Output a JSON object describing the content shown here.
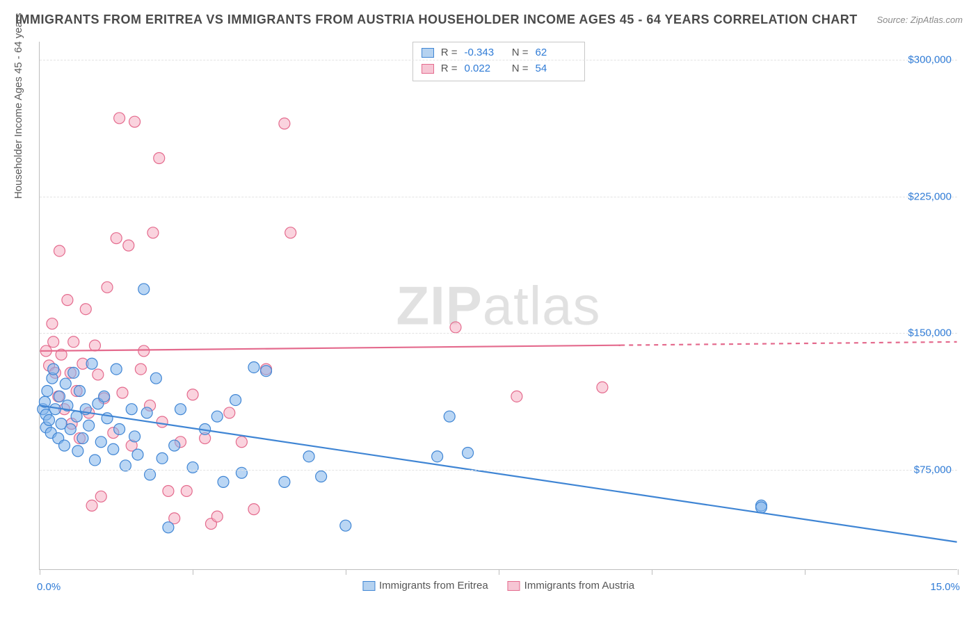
{
  "title": "IMMIGRANTS FROM ERITREA VS IMMIGRANTS FROM AUSTRIA HOUSEHOLDER INCOME AGES 45 - 64 YEARS CORRELATION CHART",
  "source": "Source: ZipAtlas.com",
  "yaxis_label": "Householder Income Ages 45 - 64 years",
  "watermark_1": "ZIP",
  "watermark_2": "atlas",
  "chart": {
    "type": "scatter",
    "background_color": "#ffffff",
    "grid_color": "#e3e3e3",
    "axis_color": "#bdbdbd",
    "tick_label_color": "#2f7bd6",
    "xlim": [
      0,
      15
    ],
    "ylim": [
      20000,
      310000
    ],
    "ytick_values": [
      75000,
      150000,
      225000,
      300000
    ],
    "ytick_labels": [
      "$75,000",
      "$150,000",
      "$225,000",
      "$300,000"
    ],
    "xtick_values": [
      0,
      2.5,
      5.0,
      7.5,
      10.0,
      12.5,
      15.0
    ],
    "xtick_left_label": "0.0%",
    "xtick_right_label": "15.0%",
    "marker_radius": 8,
    "marker_stroke_width": 1.2,
    "line_width": 2.2,
    "series": [
      {
        "name": "Immigrants from Eritrea",
        "fill": "rgba(130,180,235,0.55)",
        "stroke": "#3f85d4",
        "swatch_fill": "#b5d2f0",
        "swatch_border": "#3f85d4",
        "R": "-0.343",
        "N": "62",
        "regression": {
          "y_at_x0": 110000,
          "y_at_x15": 35000
        },
        "dash_start_x": 15,
        "points": [
          [
            0.05,
            108000
          ],
          [
            0.08,
            112000
          ],
          [
            0.1,
            98000
          ],
          [
            0.1,
            105000
          ],
          [
            0.12,
            118000
          ],
          [
            0.15,
            102000
          ],
          [
            0.18,
            95000
          ],
          [
            0.2,
            125000
          ],
          [
            0.22,
            130000
          ],
          [
            0.25,
            108000
          ],
          [
            0.3,
            92000
          ],
          [
            0.32,
            115000
          ],
          [
            0.35,
            100000
          ],
          [
            0.4,
            88000
          ],
          [
            0.42,
            122000
          ],
          [
            0.45,
            110000
          ],
          [
            0.5,
            97000
          ],
          [
            0.55,
            128000
          ],
          [
            0.6,
            104000
          ],
          [
            0.62,
            85000
          ],
          [
            0.65,
            118000
          ],
          [
            0.7,
            92000
          ],
          [
            0.75,
            108000
          ],
          [
            0.8,
            99000
          ],
          [
            0.85,
            133000
          ],
          [
            0.9,
            80000
          ],
          [
            0.95,
            111000
          ],
          [
            1.0,
            90000
          ],
          [
            1.05,
            115000
          ],
          [
            1.1,
            103000
          ],
          [
            1.2,
            86000
          ],
          [
            1.25,
            130000
          ],
          [
            1.3,
            97000
          ],
          [
            1.4,
            77000
          ],
          [
            1.5,
            108000
          ],
          [
            1.55,
            93000
          ],
          [
            1.6,
            83000
          ],
          [
            1.7,
            174000
          ],
          [
            1.75,
            106000
          ],
          [
            1.8,
            72000
          ],
          [
            1.9,
            125000
          ],
          [
            2.0,
            81000
          ],
          [
            2.1,
            43000
          ],
          [
            2.2,
            88000
          ],
          [
            2.3,
            108000
          ],
          [
            2.5,
            76000
          ],
          [
            2.7,
            97000
          ],
          [
            2.9,
            104000
          ],
          [
            3.0,
            68000
          ],
          [
            3.2,
            113000
          ],
          [
            3.3,
            73000
          ],
          [
            3.5,
            131000
          ],
          [
            3.7,
            129000
          ],
          [
            4.0,
            68000
          ],
          [
            4.4,
            82000
          ],
          [
            4.6,
            71000
          ],
          [
            5.0,
            44000
          ],
          [
            6.5,
            82000
          ],
          [
            6.7,
            104000
          ],
          [
            7.0,
            84000
          ],
          [
            11.8,
            55000
          ],
          [
            11.8,
            54000
          ]
        ]
      },
      {
        "name": "Immigrants from Austria",
        "fill": "rgba(245,175,195,0.55)",
        "stroke": "#e46a8d",
        "swatch_fill": "#f6c6d4",
        "swatch_border": "#e46a8d",
        "R": "0.022",
        "N": "54",
        "regression": {
          "y_at_x0": 140000,
          "y_at_x15": 145000
        },
        "dash_start_x": 9.5,
        "points": [
          [
            0.1,
            140000
          ],
          [
            0.15,
            132000
          ],
          [
            0.2,
            155000
          ],
          [
            0.22,
            145000
          ],
          [
            0.25,
            128000
          ],
          [
            0.3,
            115000
          ],
          [
            0.32,
            195000
          ],
          [
            0.35,
            138000
          ],
          [
            0.4,
            108000
          ],
          [
            0.45,
            168000
          ],
          [
            0.5,
            128000
          ],
          [
            0.52,
            100000
          ],
          [
            0.55,
            145000
          ],
          [
            0.6,
            118000
          ],
          [
            0.65,
            92000
          ],
          [
            0.7,
            133000
          ],
          [
            0.75,
            163000
          ],
          [
            0.8,
            106000
          ],
          [
            0.85,
            55000
          ],
          [
            0.9,
            143000
          ],
          [
            0.95,
            127000
          ],
          [
            1.0,
            60000
          ],
          [
            1.05,
            114000
          ],
          [
            1.1,
            175000
          ],
          [
            1.2,
            95000
          ],
          [
            1.25,
            202000
          ],
          [
            1.3,
            268000
          ],
          [
            1.35,
            117000
          ],
          [
            1.45,
            198000
          ],
          [
            1.5,
            88000
          ],
          [
            1.55,
            266000
          ],
          [
            1.65,
            130000
          ],
          [
            1.7,
            140000
          ],
          [
            1.8,
            110000
          ],
          [
            1.85,
            205000
          ],
          [
            1.95,
            246000
          ],
          [
            2.0,
            101000
          ],
          [
            2.1,
            63000
          ],
          [
            2.2,
            48000
          ],
          [
            2.3,
            90000
          ],
          [
            2.4,
            63000
          ],
          [
            2.5,
            116000
          ],
          [
            2.7,
            92000
          ],
          [
            2.8,
            45000
          ],
          [
            2.9,
            49000
          ],
          [
            3.1,
            106000
          ],
          [
            3.3,
            90000
          ],
          [
            3.5,
            53000
          ],
          [
            3.7,
            130000
          ],
          [
            4.0,
            265000
          ],
          [
            4.1,
            205000
          ],
          [
            6.8,
            153000
          ],
          [
            7.8,
            115000
          ],
          [
            9.2,
            120000
          ]
        ]
      }
    ]
  },
  "stat_labels": {
    "R": "R =",
    "N": "N ="
  }
}
